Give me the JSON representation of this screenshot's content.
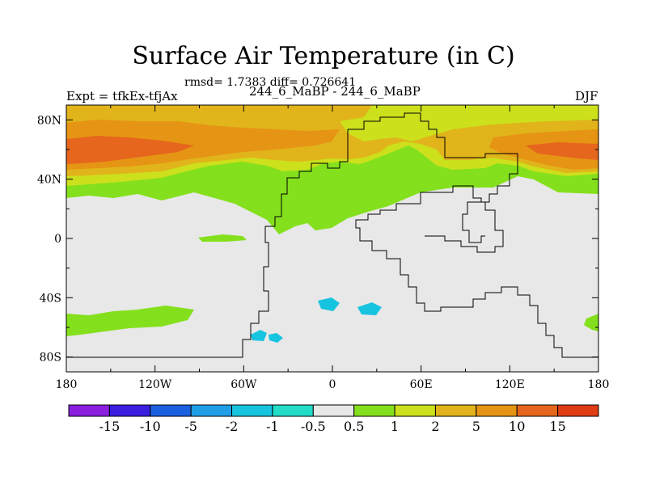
{
  "chart_data": {
    "type": "heatmap",
    "title": "Surface Air Temperature (in C)",
    "stats_line": "rmsd= 1.7383 diff= 0.726641",
    "left_label": "Expt = tfkEx-tfjAx",
    "center_label": "244_6_MaBP - 244_6_MaBP",
    "right_label": "DJF",
    "x_ticks": [
      "180",
      "120W",
      "60W",
      "0",
      "60E",
      "120E",
      "180"
    ],
    "y_ticks": [
      "80N",
      "40N",
      "0",
      "40S",
      "80S"
    ],
    "xlim": [
      -180,
      180
    ],
    "ylim": [
      -90,
      90
    ],
    "colorbar": {
      "labels": [
        "-15",
        "-10",
        "-5",
        "-2",
        "-1",
        "-0.5",
        "0.5",
        "1",
        "2",
        "5",
        "10",
        "15"
      ],
      "colors": [
        "#8b1fe0",
        "#3a1ee0",
        "#1a5fe0",
        "#1f9ee8",
        "#17c4e0",
        "#22dcc8",
        "#e8e8e8",
        "#84e01c",
        "#cce01c",
        "#e0b41a",
        "#e69414",
        "#e5661c",
        "#e03c14"
      ]
    },
    "field": [
      {
        "band": "55N-80N",
        "level": "2 to 10"
      },
      {
        "band": "55N-70N (Atlantic / Pacific)",
        "level": "5 to 15"
      },
      {
        "band": "20N-45N",
        "level": "0.5 to 2"
      },
      {
        "band": "0-20N",
        "level": "-0.5 to 0.5 (local 0.5 to 1)"
      },
      {
        "band": "10S-70S",
        "level": "-0.5 to 0.5 (local -1 to -0.5 and 0.5 to 1)"
      }
    ]
  }
}
